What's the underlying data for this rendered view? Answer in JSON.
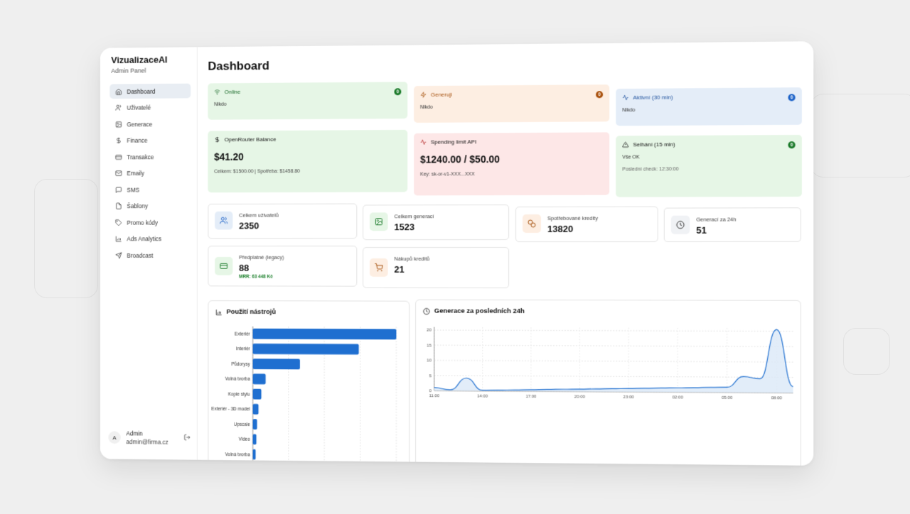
{
  "app": {
    "name": "VizualizaceAI",
    "subtitle": "Admin Panel"
  },
  "nav": [
    {
      "label": "Dashboard",
      "icon": "home-icon",
      "active": true
    },
    {
      "label": "Uživatelé",
      "icon": "users-icon"
    },
    {
      "label": "Generace",
      "icon": "image-icon"
    },
    {
      "label": "Finance",
      "icon": "dollar-icon"
    },
    {
      "label": "Transakce",
      "icon": "credit-card-icon"
    },
    {
      "label": "Emaily",
      "icon": "mail-icon"
    },
    {
      "label": "SMS",
      "icon": "message-icon"
    },
    {
      "label": "Šablony",
      "icon": "file-icon"
    },
    {
      "label": "Promo kódy",
      "icon": "tag-icon"
    },
    {
      "label": "Ads Analytics",
      "icon": "bar-chart-icon"
    },
    {
      "label": "Broadcast",
      "icon": "send-icon"
    }
  ],
  "user": {
    "avatar": "A",
    "name": "Admin",
    "email": "admin@firma.cz"
  },
  "page_title": "Dashboard",
  "status_cards": {
    "online": {
      "title": "Online",
      "count": "0",
      "text": "Nikdo"
    },
    "generating": {
      "title": "Generuji",
      "count": "0",
      "text": "Nikdo"
    },
    "active": {
      "title": "Aktivní (30 min)",
      "count": "0",
      "text": "Nikdo"
    },
    "balance": {
      "title": "OpenRouter Balance",
      "value": "$41.20",
      "detail": "Celkem: $1500.00 | Spotřeba: $1458.80"
    },
    "spending": {
      "title": "Spending limit API",
      "value": "$1240.00 / $50.00",
      "detail": "Key: sk-or-v1-XXX...XXX"
    },
    "failures": {
      "title": "Selhání (15 min)",
      "count": "0",
      "text": "Vše OK",
      "detail": "Poslední check: 12:30:00"
    }
  },
  "stats": {
    "users": {
      "label": "Celkem uživatelů",
      "value": "2350"
    },
    "generations": {
      "label": "Celkem generací",
      "value": "1523"
    },
    "credits": {
      "label": "Spotřebované kredity",
      "value": "13820"
    },
    "gen24h": {
      "label": "Generací za 24h",
      "value": "51"
    },
    "subs": {
      "label": "Předplatné (legacy)",
      "value": "88",
      "extra": "MRR: 63 448 Kč"
    },
    "purchases": {
      "label": "Nákupů kreditů",
      "value": "21"
    }
  },
  "colors": {
    "accent": "#1f6fd0",
    "green_bg": "#e6f6e6",
    "orange_bg": "#fdeee2",
    "blue_bg": "#e4edf8",
    "red_bg": "#fde7e7"
  },
  "chart_data": [
    {
      "type": "bar",
      "orientation": "horizontal",
      "title": "Použití nástrojů",
      "categories": [
        "Exteriér",
        "Interiér",
        "Půdorysy",
        "Volná tvorba",
        "Kopie stylu",
        "Exteriér - 3D model",
        "Upscale",
        "Video",
        "Volná tvorba"
      ],
      "values": [
        100,
        74,
        33,
        9,
        6,
        4,
        3,
        2.5,
        2
      ],
      "grid": true
    },
    {
      "type": "area",
      "title": "Generace za posledních 24h",
      "x": [
        "11:00",
        "12:00",
        "13:00",
        "14:00",
        "15:00",
        "16:00",
        "17:00",
        "18:00",
        "19:00",
        "20:00",
        "21:00",
        "22:00",
        "23:00",
        "00:00",
        "01:00",
        "02:00",
        "03:00",
        "04:00",
        "05:00",
        "06:00",
        "07:00",
        "08:00",
        "09:00"
      ],
      "values": [
        1,
        0.3,
        4.2,
        0.2,
        0.3,
        0.4,
        0.5,
        0.6,
        0.7,
        0.8,
        0.9,
        1.0,
        1.1,
        1.2,
        1.3,
        1.4,
        1.5,
        1.6,
        1.7,
        5.2,
        4.5,
        20.5,
        2
      ],
      "xticks": [
        "11:00",
        "14:00",
        "17:00",
        "20:00",
        "23:00",
        "02:00",
        "05:00",
        "08:00"
      ],
      "yticks": [
        0,
        5,
        10,
        15,
        20
      ],
      "ylim": [
        0,
        21
      ],
      "grid": true
    }
  ]
}
